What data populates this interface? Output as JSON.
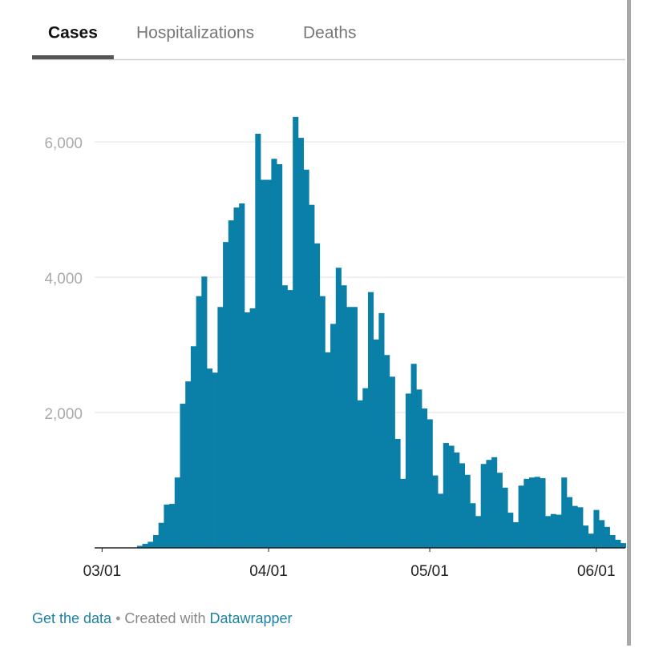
{
  "tabs": [
    "Cases",
    "Hospitalizations",
    "Deaths"
  ],
  "active_tab": 0,
  "chart_data": {
    "type": "bar",
    "color": "#0a7fa8",
    "x": [
      "03/01",
      "03/02",
      "03/03",
      "03/04",
      "03/05",
      "03/06",
      "03/07",
      "03/08",
      "03/09",
      "03/10",
      "03/11",
      "03/12",
      "03/13",
      "03/14",
      "03/15",
      "03/16",
      "03/17",
      "03/18",
      "03/19",
      "03/20",
      "03/21",
      "03/22",
      "03/23",
      "03/24",
      "03/25",
      "03/26",
      "03/27",
      "03/28",
      "03/29",
      "03/30",
      "03/31",
      "04/01",
      "04/02",
      "04/03",
      "04/04",
      "04/05",
      "04/06",
      "04/07",
      "04/08",
      "04/09",
      "04/10",
      "04/11",
      "04/12",
      "04/13",
      "04/14",
      "04/15",
      "04/16",
      "04/17",
      "04/18",
      "04/19",
      "04/20",
      "04/21",
      "04/22",
      "04/23",
      "04/24",
      "04/25",
      "04/26",
      "04/27",
      "04/28",
      "04/29",
      "04/30",
      "05/01",
      "05/02",
      "05/03",
      "05/04",
      "05/05",
      "05/06",
      "05/07",
      "05/08",
      "05/09",
      "05/10",
      "05/11",
      "05/12",
      "05/13",
      "05/14",
      "05/15",
      "05/16",
      "05/17",
      "05/18",
      "05/19",
      "05/20",
      "05/21",
      "05/22",
      "05/23",
      "05/24",
      "05/25",
      "05/26",
      "05/27",
      "05/28",
      "05/29",
      "05/30",
      "05/31",
      "06/01",
      "06/02",
      "06/03",
      "06/04",
      "06/05",
      "06/06"
    ],
    "values": [
      0,
      0,
      0,
      0,
      0,
      0,
      0,
      30,
      60,
      90,
      190,
      370,
      640,
      650,
      1040,
      2130,
      2460,
      2980,
      3720,
      4010,
      2650,
      2590,
      3560,
      4520,
      4840,
      5030,
      5090,
      3480,
      3540,
      6120,
      5440,
      5440,
      5750,
      5670,
      3880,
      3810,
      6370,
      6060,
      5590,
      5070,
      4500,
      3720,
      2890,
      3310,
      4140,
      3880,
      3560,
      3560,
      2180,
      2360,
      3780,
      3080,
      3470,
      2850,
      2530,
      1610,
      1020,
      2280,
      2720,
      2340,
      2060,
      1900,
      1070,
      800,
      1550,
      1510,
      1410,
      1250,
      1080,
      660,
      470,
      1240,
      1300,
      1340,
      1110,
      890,
      520,
      380,
      920,
      1020,
      1040,
      1050,
      1030,
      470,
      500,
      490,
      1040,
      750,
      620,
      600,
      330,
      210,
      560,
      410,
      310,
      190,
      120,
      70
    ],
    "xticks": [
      "03/01",
      "04/01",
      "05/01",
      "06/01"
    ],
    "ylim": [
      0,
      6700
    ],
    "yticks": [
      {
        "value": 2000,
        "label": "2,000"
      },
      {
        "value": 4000,
        "label": "4,000"
      },
      {
        "value": 6000,
        "label": "6,000"
      }
    ],
    "grid": true
  },
  "footer": {
    "link": "Get the data",
    "separator": "•",
    "credit": "Created with",
    "tool": "Datawrapper"
  }
}
